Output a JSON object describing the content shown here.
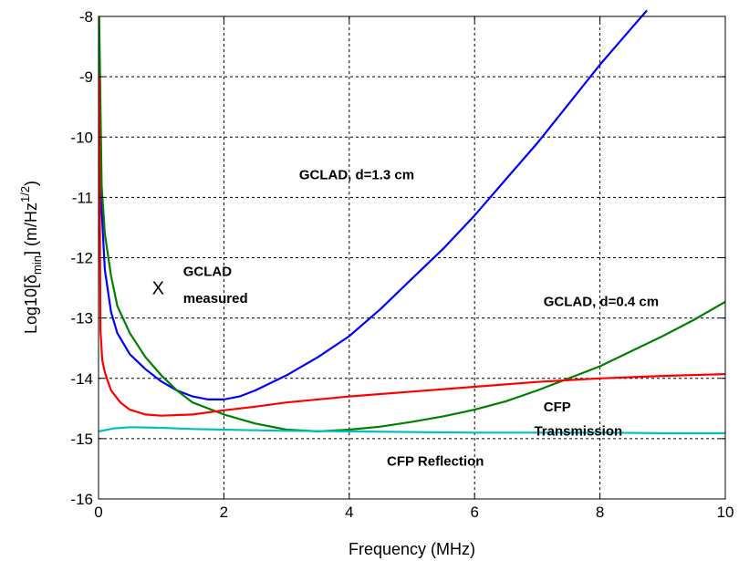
{
  "chart_data": {
    "type": "line",
    "xlabel": "Frequency (MHz)",
    "ylabel": {
      "prefix": "Log10[δ",
      "sub": "min",
      "mid": "] (m/Hz",
      "sup": "1/2",
      "suffix": ")"
    },
    "xlim": [
      0,
      10
    ],
    "ylim": [
      -16,
      -8
    ],
    "x_ticks": [
      "0",
      "2",
      "4",
      "6",
      "8",
      "10"
    ],
    "y_ticks": [
      "-8",
      "-9",
      "-10",
      "-11",
      "-12",
      "-13",
      "-14",
      "-15",
      "-16"
    ],
    "grid": true,
    "series": [
      {
        "color": "#0000ff",
        "points": [
          [
            0.01,
            -9.0
          ],
          [
            0.05,
            -11.2
          ],
          [
            0.1,
            -12.2
          ],
          [
            0.2,
            -12.9
          ],
          [
            0.3,
            -13.25
          ],
          [
            0.5,
            -13.6
          ],
          [
            0.75,
            -13.85
          ],
          [
            1.0,
            -14.05
          ],
          [
            1.25,
            -14.2
          ],
          [
            1.5,
            -14.3
          ],
          [
            1.75,
            -14.35
          ],
          [
            2.0,
            -14.35
          ],
          [
            2.25,
            -14.3
          ],
          [
            2.5,
            -14.2
          ],
          [
            3.0,
            -13.95
          ],
          [
            3.5,
            -13.65
          ],
          [
            4.0,
            -13.3
          ],
          [
            4.5,
            -12.85
          ],
          [
            5.0,
            -12.35
          ],
          [
            5.5,
            -11.85
          ],
          [
            6.0,
            -11.3
          ],
          [
            6.5,
            -10.7
          ],
          [
            7.0,
            -10.1
          ],
          [
            7.5,
            -9.45
          ],
          [
            8.0,
            -8.8
          ],
          [
            8.5,
            -8.2
          ],
          [
            8.75,
            -7.9
          ]
        ]
      },
      {
        "color": "#008000",
        "points": [
          [
            0.01,
            -8.0
          ],
          [
            0.05,
            -10.8
          ],
          [
            0.1,
            -11.6
          ],
          [
            0.2,
            -12.3
          ],
          [
            0.3,
            -12.8
          ],
          [
            0.5,
            -13.25
          ],
          [
            0.75,
            -13.65
          ],
          [
            1.0,
            -13.95
          ],
          [
            1.25,
            -14.2
          ],
          [
            1.5,
            -14.4
          ],
          [
            2.0,
            -14.6
          ],
          [
            2.5,
            -14.75
          ],
          [
            3.0,
            -14.85
          ],
          [
            3.5,
            -14.88
          ],
          [
            4.0,
            -14.85
          ],
          [
            4.5,
            -14.8
          ],
          [
            5.0,
            -14.72
          ],
          [
            5.5,
            -14.63
          ],
          [
            6.0,
            -14.52
          ],
          [
            6.5,
            -14.38
          ],
          [
            7.0,
            -14.2
          ],
          [
            7.5,
            -14.0
          ],
          [
            8.0,
            -13.8
          ],
          [
            8.5,
            -13.55
          ],
          [
            9.0,
            -13.3
          ],
          [
            9.5,
            -13.03
          ],
          [
            10.0,
            -12.73
          ]
        ]
      },
      {
        "color": "#ff0000",
        "points": [
          [
            0.01,
            -9.0
          ],
          [
            0.03,
            -13.2
          ],
          [
            0.06,
            -13.7
          ],
          [
            0.1,
            -13.9
          ],
          [
            0.2,
            -14.2
          ],
          [
            0.35,
            -14.4
          ],
          [
            0.5,
            -14.52
          ],
          [
            0.75,
            -14.6
          ],
          [
            1.0,
            -14.62
          ],
          [
            1.5,
            -14.6
          ],
          [
            2.0,
            -14.53
          ],
          [
            2.5,
            -14.47
          ],
          [
            3.0,
            -14.4
          ],
          [
            4.0,
            -14.3
          ],
          [
            5.0,
            -14.22
          ],
          [
            6.0,
            -14.14
          ],
          [
            7.0,
            -14.06
          ],
          [
            8.0,
            -14.0
          ],
          [
            9.0,
            -13.96
          ],
          [
            10.0,
            -13.93
          ]
        ]
      },
      {
        "color": "#00c0c0",
        "points": [
          [
            0.0,
            -14.88
          ],
          [
            0.25,
            -14.83
          ],
          [
            0.5,
            -14.81
          ],
          [
            1.0,
            -14.82
          ],
          [
            1.5,
            -14.84
          ],
          [
            2.0,
            -14.85
          ],
          [
            3.0,
            -14.87
          ],
          [
            4.0,
            -14.88
          ],
          [
            5.0,
            -14.89
          ],
          [
            6.0,
            -14.9
          ],
          [
            7.0,
            -14.9
          ],
          [
            8.0,
            -14.9
          ],
          [
            9.0,
            -14.91
          ],
          [
            10.0,
            -14.91
          ]
        ]
      }
    ],
    "annotations": [
      {
        "text": "GCLAD, d=1.3 cm",
        "x": 3.2,
        "y": -10.7
      },
      {
        "text": "GCLAD, d=0.4 cm",
        "x": 7.1,
        "y": -12.8
      },
      {
        "text": "GCLAD",
        "x": 1.35,
        "y": -12.3
      },
      {
        "text": "measured",
        "x": 1.35,
        "y": -12.75
      },
      {
        "text": "CFP",
        "x": 7.1,
        "y": -14.55
      },
      {
        "text": "Transmission",
        "x": 6.95,
        "y": -14.95
      },
      {
        "text": "CFP Reflection",
        "x": 4.6,
        "y": -15.45
      }
    ],
    "markers": [
      {
        "label": "X",
        "x": 0.95,
        "y": -12.5
      }
    ]
  }
}
